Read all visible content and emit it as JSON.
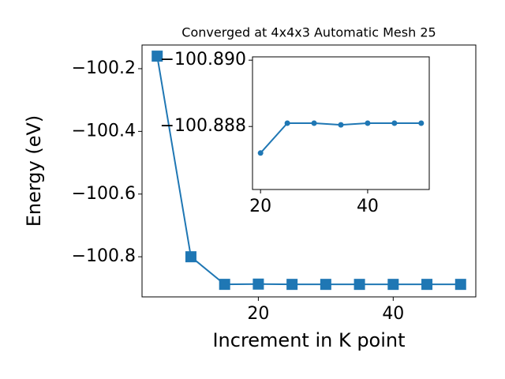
{
  "chart_data": [
    {
      "type": "line",
      "title": "Converged at 4x4x3 Automatic Mesh 25",
      "x_label": "Increment in K point",
      "y_label": "Energy (eV)",
      "x": [
        5,
        10,
        15,
        20,
        25,
        30,
        35,
        40,
        45,
        50
      ],
      "series": [
        {
          "color": "#1f77b4",
          "marker": "square",
          "values": [
            -100.16,
            -100.8,
            -100.888,
            -100.8872,
            -100.8881,
            -100.8881,
            -100.8881,
            -100.8881,
            -100.8881,
            -100.8881
          ]
        }
      ],
      "xlim": [
        2.75,
        52.25
      ],
      "ylim": [
        -100.928,
        -100.1245
      ],
      "xticks": [
        20,
        40
      ],
      "yticks": [
        {
          "value": -100.8,
          "label": "−100.8"
        },
        {
          "value": -100.6,
          "label": "−100.6"
        },
        {
          "value": -100.4,
          "label": "−100.4"
        },
        {
          "value": -100.2,
          "label": "−100.2"
        }
      ]
    },
    {
      "type": "line",
      "x": [
        20,
        25,
        30,
        35,
        40,
        45,
        50
      ],
      "series": [
        {
          "color": "#1f77b4",
          "marker": "circle",
          "values": [
            -100.8872,
            -100.8881,
            -100.8881,
            -100.88805,
            -100.8881,
            -100.8881,
            -100.8881
          ]
        }
      ],
      "xlim": [
        18.5,
        51.5
      ],
      "ylim": [
        -100.8861,
        -100.8901
      ],
      "xticks": [
        20,
        40
      ],
      "yticks": [
        {
          "value": -100.888,
          "label": "−100.888"
        },
        {
          "value": -100.89,
          "label": "−100.890"
        }
      ]
    }
  ]
}
